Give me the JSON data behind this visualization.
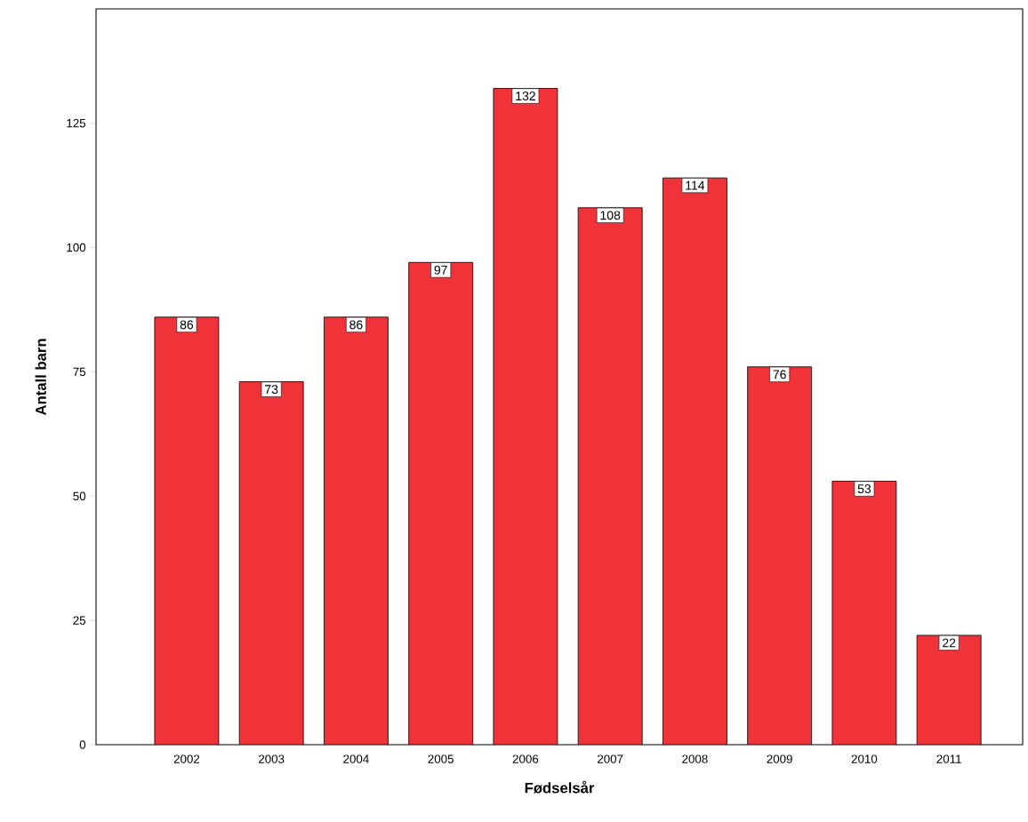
{
  "chart_data": {
    "type": "bar",
    "xlabel": "Fødselsår",
    "ylabel": "Antall barn",
    "categories": [
      "2002",
      "2003",
      "2004",
      "2005",
      "2006",
      "2007",
      "2008",
      "2009",
      "2010",
      "2011"
    ],
    "values": [
      86,
      73,
      86,
      97,
      132,
      108,
      114,
      76,
      53,
      22
    ],
    "color": "#ef3339",
    "ylim": [
      0,
      148
    ],
    "yticks": [
      0,
      25,
      50,
      75,
      100,
      125
    ],
    "data_labels": true
  }
}
